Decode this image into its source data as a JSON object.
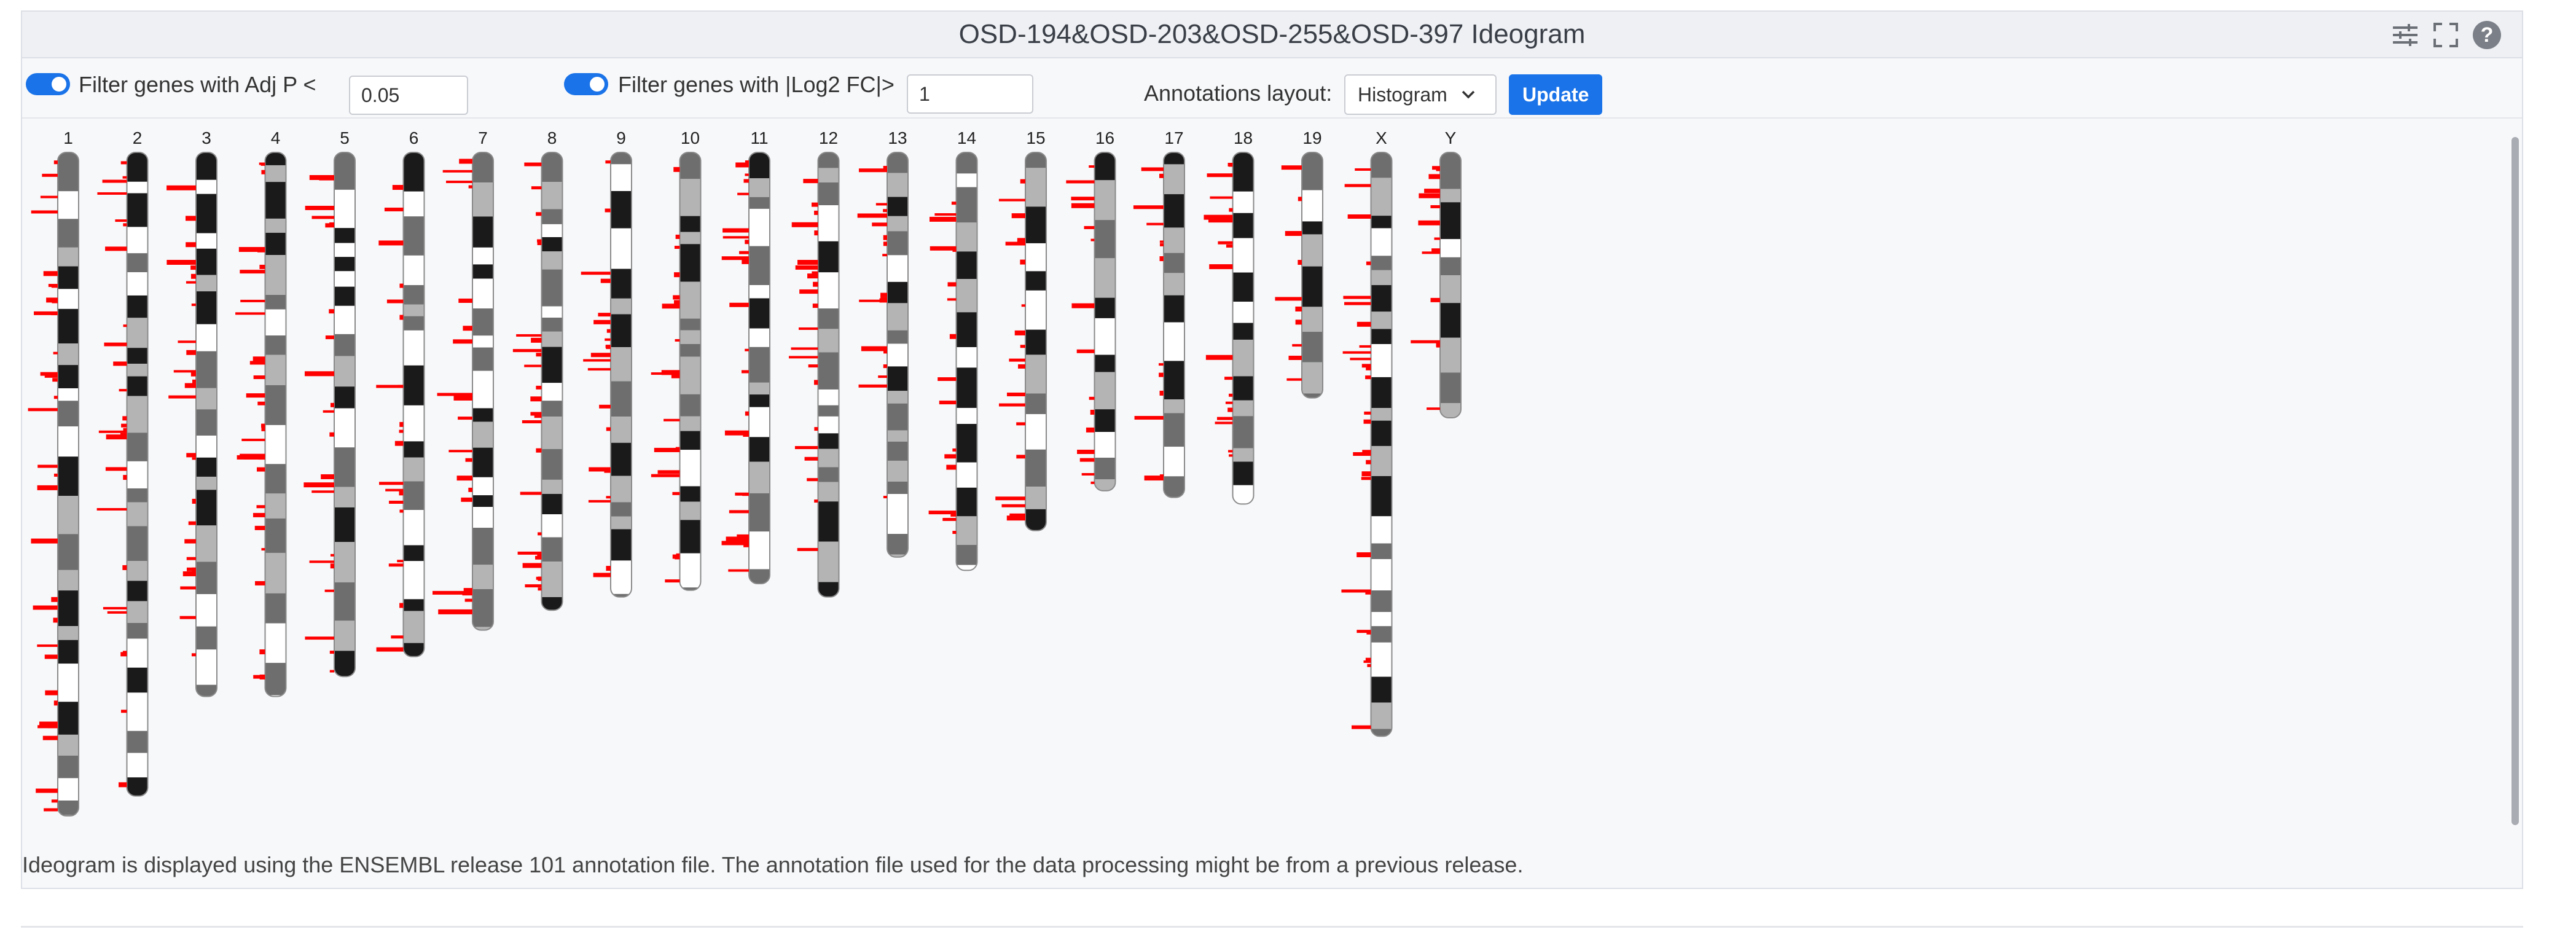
{
  "panel": {
    "title": "OSD-194&OSD-203&OSD-255&OSD-397 Ideogram",
    "icons": [
      "sliders-icon",
      "fullscreen-icon",
      "help-icon"
    ],
    "help_glyph": "?"
  },
  "filters": {
    "adjp": {
      "enabled": true,
      "label": "Filter genes with Adj P <",
      "value": "0.05"
    },
    "log2fc": {
      "enabled": true,
      "label": "Filter genes with |Log2 FC|>",
      "value": "1"
    },
    "layout": {
      "label": "Annotations layout:",
      "selected": "Histogram"
    },
    "update_label": "Update"
  },
  "colors": {
    "accent": "#1a73e8",
    "annotation": "#ff0000",
    "band_dark": "#1a1a1a",
    "band_mid": "#6e6e6e",
    "band_light": "#b4b4b4",
    "band_white": "#ffffff"
  },
  "ideogram": {
    "chromosomes": [
      {
        "label": "1",
        "length": 1.0
      },
      {
        "label": "2",
        "length": 0.97
      },
      {
        "label": "3",
        "length": 0.82
      },
      {
        "label": "4",
        "length": 0.82
      },
      {
        "label": "5",
        "length": 0.79
      },
      {
        "label": "6",
        "length": 0.76
      },
      {
        "label": "7",
        "length": 0.72
      },
      {
        "label": "8",
        "length": 0.69
      },
      {
        "label": "9",
        "length": 0.67
      },
      {
        "label": "10",
        "length": 0.66
      },
      {
        "label": "11",
        "length": 0.65
      },
      {
        "label": "12",
        "length": 0.67
      },
      {
        "label": "13",
        "length": 0.61
      },
      {
        "label": "14",
        "length": 0.63
      },
      {
        "label": "15",
        "length": 0.57
      },
      {
        "label": "16",
        "length": 0.51
      },
      {
        "label": "17",
        "length": 0.52
      },
      {
        "label": "18",
        "length": 0.53
      },
      {
        "label": "19",
        "length": 0.37
      },
      {
        "label": "X",
        "length": 0.88
      },
      {
        "label": "Y",
        "length": 0.4
      }
    ]
  },
  "footnote": "Ideogram is displayed using the ENSEMBL release 101 annotation file. The annotation file used for the data processing might be from a previous release."
}
